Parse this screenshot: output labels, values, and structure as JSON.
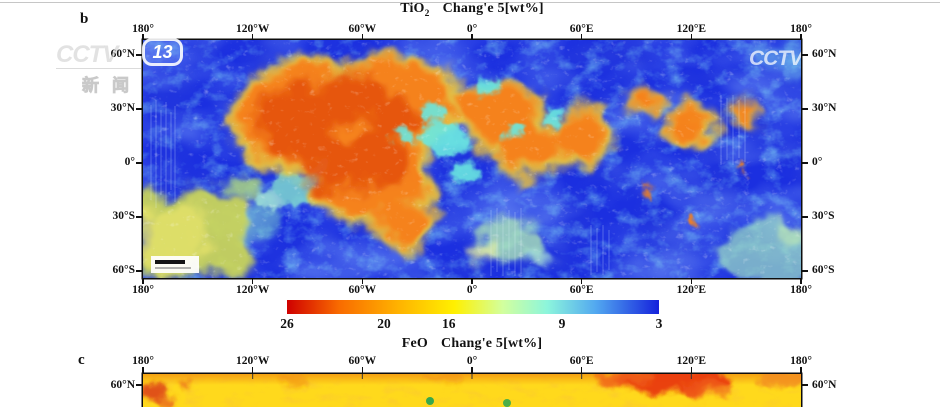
{
  "figure": {
    "panel_b": {
      "label": "b",
      "title_prefix": "TiO",
      "title_sub": "2",
      "title_suffix": "Chang'e 5[wt%]",
      "lon_ticks": [
        "180°",
        "120°W",
        "60°W",
        "0°",
        "60°E",
        "120°E",
        "180°"
      ],
      "lat_ticks": [
        "60°N",
        "30°N",
        "0°",
        "30°S",
        "60°S"
      ],
      "colorbar_values": [
        "26",
        "20",
        "16",
        "9",
        "3"
      ]
    },
    "panel_c": {
      "label": "c",
      "title_prefix": "FeO",
      "title_suffix": "Chang'e 5[wt%]",
      "lon_ticks": [
        "180°",
        "120°W",
        "60°W",
        "0°",
        "60°E",
        "120°E",
        "180°"
      ],
      "lat_tick_left": "60°N",
      "lat_tick_right": "60°N"
    }
  },
  "watermarks": {
    "cctv_left_network": "CCTV",
    "cctv_left_channel": "13",
    "cctv_left_caption": "新闻",
    "cctv_right": "CCTV"
  },
  "colors": {
    "map_low_blue": "#1b2fe0",
    "maria_orange": "#f5821e",
    "maria_red": "#e5530e",
    "feo_yellow": "#ffd91c",
    "colorbar_high_red": "#cf0000",
    "colorbar_low_blue": "#1522dc"
  },
  "chart_data": [
    {
      "type": "heatmap",
      "panel": "b",
      "title": "TiO2 Chang'e 5[wt%]",
      "projection": "global lunar equirectangular map",
      "x_axis": {
        "ticks": [
          "180°",
          "120°W",
          "60°W",
          "0°",
          "60°E",
          "120°E",
          "180°"
        ],
        "shown": "top and bottom"
      },
      "y_axis": {
        "ticks": [
          "60°N",
          "30°N",
          "0°",
          "30°S",
          "60°S"
        ],
        "shown": "left and right"
      },
      "colorbar": {
        "tick_values": [
          26,
          20,
          16,
          9,
          3
        ],
        "orientation": "horizontal",
        "high_end": "red (26 wt%, left)",
        "low_end": "blue (3 wt%, right)",
        "unit": "wt%"
      },
      "scale_bar": "small black bar on white chip at bottom-left of map (annotation illegible)",
      "pattern": "Low-TiO2 royal-blue highlands dominate; a large high-TiO2 orange-red maria complex lies left of map center (~60°W-0°, 0°-40°N) with cyan gaps; smaller orange patches extend toward 60°E; yellow-green region at far southwest corner; pale cyan-green mottled patches in the south-center and southeast; faint vertical striping artifacts."
    },
    {
      "type": "heatmap",
      "panel": "c",
      "title": "FeO Chang'e 5[wt%]",
      "x_axis": {
        "ticks": [
          "180°",
          "120°W",
          "60°W",
          "0°",
          "60°E",
          "120°E",
          "180°"
        ],
        "shown": "top"
      },
      "y_axis": {
        "visible_ticks": [
          "60°N"
        ]
      },
      "pattern": "Only the northern strip is visible before the frame cuts off: mostly yellow with orange mottling along the top edge, red-orange speckles at the far left, a strong red patch near 60°E-120°E at ~60°N, and two small green dots near 60°W-30°W."
    }
  ]
}
